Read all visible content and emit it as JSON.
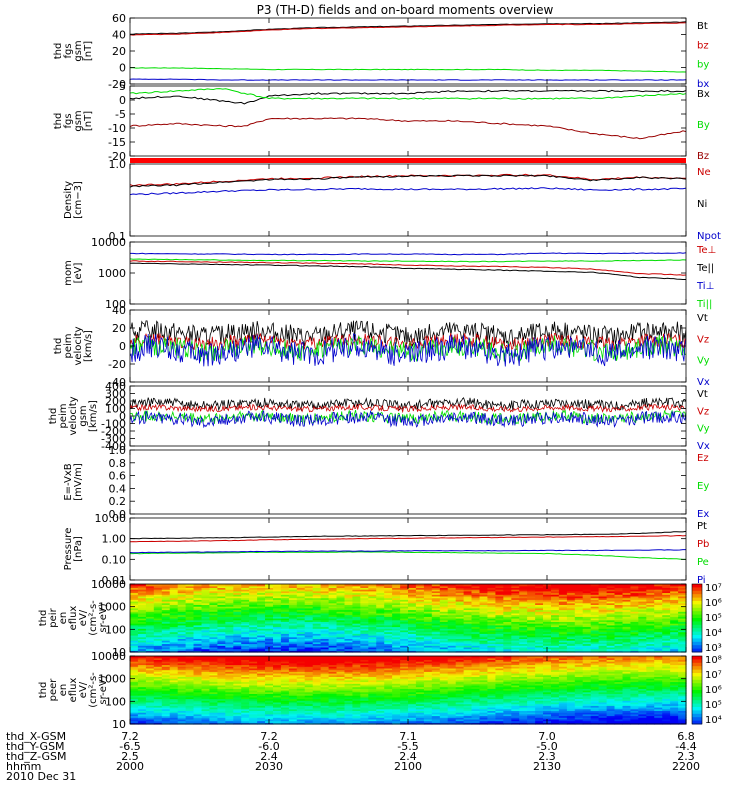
{
  "title": "P3 (TH-D) fields and on-board moments overview",
  "footer": {
    "x_label": "thd_X-GSM",
    "y_label": "thd_Y-GSM",
    "z_label": "thd_Z-GSM",
    "time_label": "hhmm",
    "date": "2010 Dec 31"
  },
  "time_axis": {
    "ticks": [
      "2000",
      "2030",
      "2100",
      "2130",
      "2200"
    ],
    "x_gsm": [
      "7.2",
      "7.2",
      "7.1",
      "7.0",
      "6.8"
    ],
    "y_gsm": [
      "-6.5",
      "-6.0",
      "-5.5",
      "-5.0",
      "-4.4"
    ],
    "z_gsm": [
      "2.5",
      "2.4",
      "2.4",
      "2.3",
      "2.3"
    ]
  },
  "colors": {
    "black": "#000000",
    "red": "#cc0000",
    "darkred": "#990000",
    "green": "#00dd00",
    "blue": "#0000cc",
    "bright_red": "#ff0000"
  },
  "chart_data": [
    {
      "type": "line",
      "ylabel": [
        "thd",
        "fgs",
        "gsm",
        "[nT]"
      ],
      "yticks": [
        "60",
        "40",
        "20",
        "0",
        "-20"
      ],
      "ylim": [
        -20,
        62
      ],
      "series": [
        {
          "name": "Bt",
          "color": "#000000",
          "x": [
            2000,
            2010,
            2020,
            2030,
            2040,
            2050,
            2100,
            2110,
            2120,
            2130,
            2140,
            2150,
            2200
          ],
          "y": [
            42,
            43,
            45,
            48,
            50,
            51,
            52,
            53,
            54,
            55,
            55,
            56,
            57
          ]
        },
        {
          "name": "bz",
          "color": "#cc0000",
          "x": [
            2000,
            2010,
            2020,
            2030,
            2040,
            2050,
            2100,
            2110,
            2120,
            2130,
            2140,
            2150,
            2200
          ],
          "y": [
            41,
            42,
            44,
            47,
            49,
            50,
            51,
            52,
            53,
            54,
            54,
            55,
            56
          ]
        },
        {
          "name": "by",
          "color": "#00dd00",
          "x": [
            2000,
            2010,
            2020,
            2030,
            2040,
            2050,
            2100,
            2110,
            2120,
            2130,
            2140,
            2150,
            2200
          ],
          "y": [
            0,
            0,
            -1,
            -2,
            -2,
            -2,
            -2,
            -2,
            -2,
            -3,
            -3,
            -4,
            -5
          ]
        },
        {
          "name": "bx",
          "color": "#0000cc",
          "x": [
            2000,
            2010,
            2020,
            2030,
            2040,
            2050,
            2100,
            2110,
            2120,
            2130,
            2140,
            2150,
            2200
          ],
          "y": [
            -14,
            -14,
            -15,
            -15,
            -15,
            -15,
            -15,
            -15,
            -15,
            -15,
            -15,
            -15,
            -15
          ]
        }
      ]
    },
    {
      "type": "line",
      "ylabel": [
        "thd",
        "fgs",
        "gsm",
        "[nT]"
      ],
      "yticks": [
        "5",
        "0",
        "-5",
        "-10",
        "-15",
        "-20"
      ],
      "ylim": [
        -22,
        6
      ],
      "series": [
        {
          "name": "Bx",
          "color": "#000000",
          "x": [
            2000,
            2010,
            2020,
            2025,
            2030,
            2040,
            2050,
            2100,
            2110,
            2120,
            2130,
            2140,
            2150,
            2200
          ],
          "y": [
            1,
            2,
            0,
            -1,
            2,
            3,
            3,
            3,
            4,
            4,
            4,
            4,
            4,
            4
          ]
        },
        {
          "name": "By",
          "color": "#00dd00",
          "x": [
            2000,
            2010,
            2020,
            2025,
            2030,
            2040,
            2050,
            2100,
            2110,
            2120,
            2130,
            2140,
            2150,
            2200
          ],
          "y": [
            3,
            4,
            5,
            3,
            1,
            1,
            1,
            1,
            1,
            1,
            1,
            1,
            2,
            3
          ]
        },
        {
          "name": "Bz",
          "color": "#990000",
          "x": [
            2000,
            2010,
            2020,
            2025,
            2030,
            2040,
            2050,
            2100,
            2110,
            2120,
            2130,
            2140,
            2150,
            2200
          ],
          "y": [
            -10,
            -9,
            -10,
            -10,
            -7,
            -7,
            -7,
            -8,
            -8,
            -9,
            -10,
            -13,
            -15,
            -12
          ]
        }
      ]
    },
    {
      "type": "line",
      "ylabel": [
        "Density",
        "[cm−3]"
      ],
      "yticks": [
        "1.0",
        "0.1"
      ],
      "yscale": "log",
      "ylim": [
        0.1,
        1.2
      ],
      "series": [
        {
          "name": "Ne",
          "color": "#cc0000",
          "x": [
            2000,
            2010,
            2020,
            2030,
            2040,
            2050,
            2100,
            2110,
            2120,
            2130,
            2140,
            2150,
            2200
          ],
          "y": [
            0.58,
            0.6,
            0.66,
            0.72,
            0.74,
            0.78,
            0.8,
            0.8,
            0.82,
            0.82,
            0.7,
            0.76,
            0.73
          ]
        },
        {
          "name": "Ni",
          "color": "#000000",
          "x": [
            2000,
            2010,
            2020,
            2030,
            2040,
            2050,
            2100,
            2110,
            2120,
            2130,
            2140,
            2150,
            2200
          ],
          "y": [
            0.55,
            0.58,
            0.64,
            0.7,
            0.72,
            0.76,
            0.79,
            0.8,
            0.8,
            0.8,
            0.68,
            0.75,
            0.72
          ]
        },
        {
          "name": "Npot",
          "color": "#0000cc",
          "x": [
            2000,
            2010,
            2020,
            2030,
            2040,
            2050,
            2100,
            2110,
            2120,
            2130,
            2140,
            2150,
            2200
          ],
          "y": [
            0.42,
            0.44,
            0.47,
            0.49,
            0.5,
            0.51,
            0.5,
            0.5,
            0.51,
            0.52,
            0.49,
            0.5,
            0.51
          ]
        }
      ]
    },
    {
      "type": "line",
      "ylabel": [
        "mom",
        "[eV]"
      ],
      "yticks": [
        "10000",
        "1000",
        "100"
      ],
      "yscale": "log",
      "ylim": [
        100,
        11000
      ],
      "series": [
        {
          "name": "Te⊥",
          "color": "#cc0000",
          "x": [
            2000,
            2010,
            2020,
            2030,
            2040,
            2050,
            2100,
            2110,
            2120,
            2130,
            2140,
            2150,
            2200
          ],
          "y": [
            2600,
            2500,
            2400,
            2300,
            2200,
            2100,
            1900,
            1800,
            1700,
            1600,
            1400,
            1000,
            900
          ]
        },
        {
          "name": "Te||",
          "color": "#000000",
          "x": [
            2000,
            2010,
            2020,
            2030,
            2040,
            2050,
            2100,
            2110,
            2120,
            2130,
            2140,
            2150,
            2200
          ],
          "y": [
            2200,
            2100,
            2000,
            1900,
            1800,
            1700,
            1500,
            1400,
            1300,
            1200,
            1100,
            750,
            650
          ]
        },
        {
          "name": "Ti⊥",
          "color": "#0000cc",
          "x": [
            2000,
            2010,
            2020,
            2030,
            2040,
            2050,
            2100,
            2110,
            2120,
            2130,
            2140,
            2150,
            2200
          ],
          "y": [
            4600,
            4500,
            4400,
            4300,
            4300,
            4400,
            4400,
            4300,
            4300,
            4700,
            4600,
            4700,
            4800
          ]
        },
        {
          "name": "Ti||",
          "color": "#00dd00",
          "x": [
            2000,
            2010,
            2020,
            2030,
            2040,
            2050,
            2100,
            2110,
            2120,
            2130,
            2140,
            2150,
            2200
          ],
          "y": [
            3000,
            2900,
            2800,
            2700,
            2700,
            2600,
            2600,
            2500,
            2500,
            2600,
            2600,
            2700,
            2800
          ]
        }
      ]
    },
    {
      "type": "line",
      "ylabel": [
        "thd",
        "peim",
        "velocity",
        "[km/s]"
      ],
      "yticks": [
        "40",
        "20",
        "0",
        "-20",
        "-40"
      ],
      "ylim": [
        -42,
        42
      ],
      "series": [
        {
          "name": "Vt",
          "color": "#000000",
          "baseline": 15,
          "amplitude": 12
        },
        {
          "name": "Vz",
          "color": "#cc0000",
          "baseline": 5,
          "amplitude": 8
        },
        {
          "name": "Vy",
          "color": "#00dd00",
          "baseline": -3,
          "amplitude": 12
        },
        {
          "name": "Vx",
          "color": "#0000cc",
          "baseline": -5,
          "amplitude": 15
        }
      ]
    },
    {
      "type": "line",
      "ylabel": [
        "thd",
        "peim",
        "velocity",
        "gsm",
        "[km/s]"
      ],
      "yticks": [
        "400",
        "300",
        "200",
        "100",
        "0",
        "-100",
        "-200",
        "-300",
        "-400"
      ],
      "ylim": [
        -420,
        420
      ],
      "series": [
        {
          "name": "Vt",
          "color": "#000000",
          "baseline": 170,
          "amplitude": 70
        },
        {
          "name": "Vz",
          "color": "#cc0000",
          "baseline": 110,
          "amplitude": 40
        },
        {
          "name": "Vy",
          "color": "#00dd00",
          "baseline": -20,
          "amplitude": 80
        },
        {
          "name": "Vx",
          "color": "#0000cc",
          "baseline": -40,
          "amplitude": 90
        }
      ]
    },
    {
      "type": "line",
      "ylabel": [
        "E=-VxB",
        "[mV/m]"
      ],
      "yticks": [
        "1.0",
        "0.8",
        "0.6",
        "0.4",
        "0.2",
        "0.0"
      ],
      "ylim": [
        0,
        1
      ],
      "series": [
        {
          "name": "Ez",
          "color": "#cc0000"
        },
        {
          "name": "Ey",
          "color": "#00dd00"
        },
        {
          "name": "Ex",
          "color": "#0000cc"
        }
      ]
    },
    {
      "type": "line",
      "ylabel": [
        "Pressure",
        "[nPa]"
      ],
      "yticks": [
        "10.00",
        "1.00",
        "0.10",
        "0.01"
      ],
      "yscale": "log",
      "ylim": [
        0.01,
        10
      ],
      "series": [
        {
          "name": "Pt",
          "color": "#000000",
          "x": [
            2000,
            2010,
            2020,
            2030,
            2040,
            2050,
            2100,
            2110,
            2120,
            2130,
            2140,
            2150,
            2200
          ],
          "y": [
            1.0,
            1.05,
            1.1,
            1.2,
            1.3,
            1.35,
            1.4,
            1.45,
            1.5,
            1.55,
            1.6,
            1.8,
            2.2
          ]
        },
        {
          "name": "Pb",
          "color": "#cc0000",
          "x": [
            2000,
            2010,
            2020,
            2030,
            2040,
            2050,
            2100,
            2110,
            2120,
            2130,
            2140,
            2150,
            2200
          ],
          "y": [
            0.72,
            0.75,
            0.8,
            0.88,
            0.93,
            1.0,
            1.05,
            1.1,
            1.15,
            1.2,
            1.25,
            1.3,
            1.4
          ]
        },
        {
          "name": "Pe",
          "color": "#00dd00",
          "x": [
            2000,
            2010,
            2020,
            2030,
            2040,
            2050,
            2100,
            2110,
            2120,
            2130,
            2140,
            2150,
            2200
          ],
          "y": [
            0.19,
            0.2,
            0.21,
            0.22,
            0.22,
            0.23,
            0.22,
            0.21,
            0.2,
            0.19,
            0.16,
            0.12,
            0.1
          ]
        },
        {
          "name": "Pi",
          "color": "#0000cc",
          "x": [
            2000,
            2010,
            2020,
            2030,
            2040,
            2050,
            2100,
            2110,
            2120,
            2130,
            2140,
            2150,
            2200
          ],
          "y": [
            0.21,
            0.22,
            0.23,
            0.24,
            0.25,
            0.25,
            0.26,
            0.26,
            0.26,
            0.27,
            0.27,
            0.28,
            0.29
          ]
        }
      ]
    },
    {
      "type": "heatmap",
      "ylabel": [
        "thd",
        "peir",
        "en",
        "eflux",
        "eV/",
        "(cm²-s-",
        "sr-eV)"
      ],
      "yticks": [
        "10000",
        "1000",
        "100",
        "10"
      ],
      "yscale": "log",
      "colorbar": [
        "10⁷",
        "10⁶",
        "10⁵",
        "10⁴",
        "10³"
      ]
    },
    {
      "type": "heatmap",
      "ylabel": [
        "thd",
        "peer",
        "en",
        "eflux",
        "eV/",
        "(cm²-s-",
        "sr-eV)"
      ],
      "yticks": [
        "10000",
        "1000",
        "100",
        "10"
      ],
      "yscale": "log",
      "colorbar": [
        "10⁸",
        "10⁷",
        "10⁶",
        "10⁵",
        "10⁴"
      ]
    }
  ]
}
